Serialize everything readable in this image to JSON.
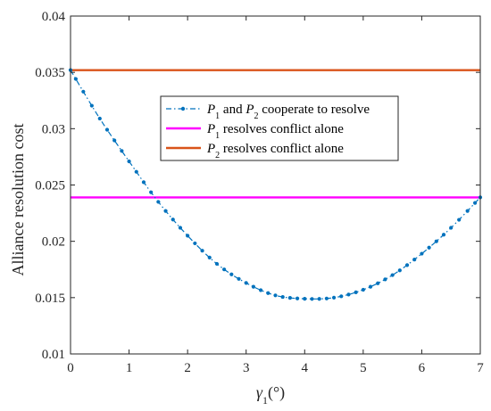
{
  "chart_data": {
    "type": "line",
    "xlabel": "γ1(°)",
    "ylabel": "Alliance resolution cost",
    "xlim": [
      0,
      7
    ],
    "ylim": [
      0.01,
      0.04
    ],
    "x_ticks": [
      0,
      1,
      2,
      3,
      4,
      5,
      6,
      7
    ],
    "y_ticks": [
      0.01,
      0.015,
      0.02,
      0.025,
      0.03,
      0.035,
      0.04
    ],
    "y_tick_labels": [
      "0.01",
      "0.015",
      "0.02",
      "0.025",
      "0.03",
      "0.035",
      "0.04"
    ],
    "grid": false,
    "legend_position": "center",
    "series": [
      {
        "name": "P1 and P2 cooperate to resolve",
        "style": "dash-dot-marker",
        "color": "#0072BD",
        "x": [
          0.0,
          0.5,
          1.0,
          1.5,
          2.0,
          2.5,
          3.0,
          3.5,
          4.0,
          4.5,
          5.0,
          5.5,
          6.0,
          6.5,
          7.0
        ],
        "y": [
          0.0352,
          0.0309,
          0.0271,
          0.0235,
          0.0205,
          0.018,
          0.0163,
          0.0152,
          0.0149,
          0.015,
          0.0157,
          0.017,
          0.0189,
          0.0212,
          0.0239
        ]
      },
      {
        "name": "P1 resolves conflict alone",
        "style": "solid",
        "color": "#FF00FF",
        "x": [
          0,
          7
        ],
        "y": [
          0.0239,
          0.0239
        ]
      },
      {
        "name": "P2 resolves conflict alone",
        "style": "solid",
        "color": "#D95319",
        "x": [
          0,
          7
        ],
        "y": [
          0.0352,
          0.0352
        ]
      }
    ],
    "legend": [
      {
        "pre": "P",
        "sub": "1",
        "mid": " and ",
        "pre2": "P",
        "sub2": "2",
        "post": " cooperate to resolve"
      },
      {
        "pre": "P",
        "sub": "1",
        "post": " resolves conflict alone"
      },
      {
        "pre": "P",
        "sub": "2",
        "post": " resolves conflict alone"
      }
    ]
  }
}
